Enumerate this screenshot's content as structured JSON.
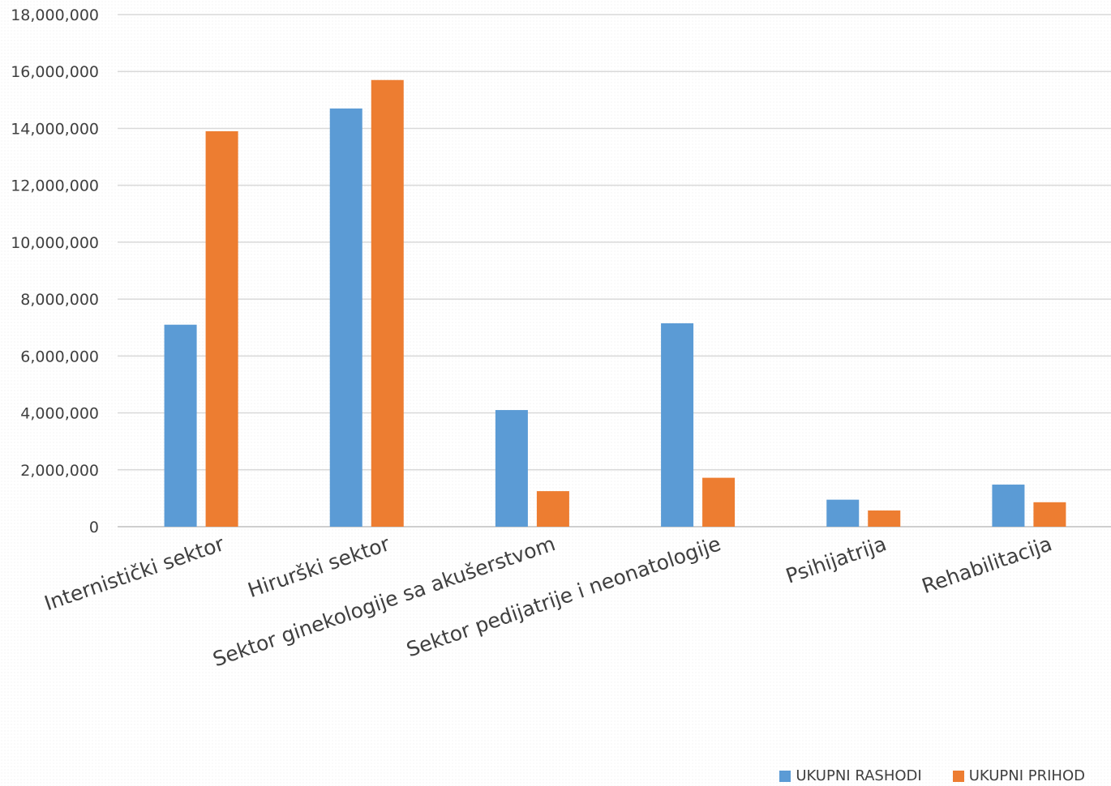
{
  "chart_data": {
    "type": "bar",
    "categories": [
      "Internistički sektor",
      "Hirurški sektor",
      "Sektor ginekologije sa akušerstvom",
      "Sektor pedijatrije i neonatologije",
      "Psihijatrija",
      "Rehabilitacija"
    ],
    "series": [
      {
        "name": "UKUPNI RASHODI",
        "color": "#5B9BD5",
        "values": [
          7100000,
          14700000,
          4100000,
          7150000,
          950000,
          1480000
        ]
      },
      {
        "name": "UKUPNI PRIHOD",
        "color": "#ED7D31",
        "values": [
          13900000,
          15700000,
          1250000,
          1720000,
          570000,
          860000
        ]
      }
    ],
    "ylim": [
      0,
      18000000
    ],
    "yticks": [
      "0",
      "2,000,000",
      "4,000,000",
      "6,000,000",
      "8,000,000",
      "10,000,000",
      "12,000,000",
      "14,000,000",
      "16,000,000",
      "18,000,000"
    ],
    "grid": true,
    "legend_position": "bottom-right"
  }
}
